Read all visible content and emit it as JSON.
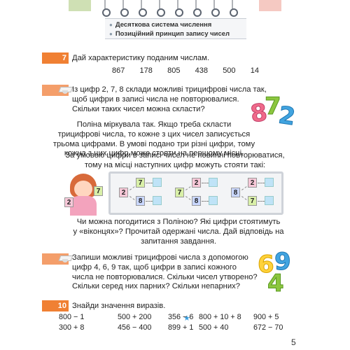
{
  "header": {
    "topics": [
      "Десяткова система числення",
      "Позиційний принцип запису чисел"
    ]
  },
  "task7": {
    "number": "7",
    "text": "Дай характеристику поданим числам.",
    "numbers": [
      "867",
      "178",
      "805",
      "438",
      "500",
      "14"
    ]
  },
  "task8": {
    "number": "8",
    "lines": [
      "Із цифр 2, 7, 8 склади можливі трицифрові числа так,",
      "щоб цифри в записі числа не повторювалися.",
      "Скільки таких чисел можна скласти?"
    ],
    "polina_lines": [
      "Поліна міркувала так. Якщо треба скласти",
      "трицифрові числа, то кожне з цих чисел записується",
      "трьома цифрами. В умові подано три різні цифри, тому",
      "кожна з цих цифр може стояти на першому місці.",
      "За умовою цифри в записі чисел не повинні повторюватися,",
      "тому на місці наступних цифр можуть стояти такі:"
    ],
    "digits_art": [
      "8",
      "7",
      "2"
    ],
    "girl_cards": [
      "2",
      "7"
    ],
    "diagram": [
      {
        "first": "2",
        "second_a": "7",
        "second_b": "8"
      },
      {
        "first": "7",
        "second_a": "2",
        "second_b": "8"
      },
      {
        "first": "8",
        "second_a": "2",
        "second_b": "7"
      }
    ],
    "question_lines": [
      "Чи можна погодитися з Поліною? Які цифри стоятимуть",
      "у «віконцях»? Прочитай одержані числа. Дай відповідь на",
      "запитання завдання."
    ]
  },
  "task9": {
    "number": "9",
    "lines": [
      "Запиши можливі трицифрові числа з допомогою",
      "цифр 4, 6, 9 так, щоб цифри в записі кожного",
      "числа не повторювалися. Скільки чисел утворено?",
      "Скільки серед них парних? Скільки непарних?"
    ],
    "digits_art": [
      "6",
      "9",
      "4"
    ]
  },
  "task10": {
    "number": "10",
    "text": "Знайди значення виразів.",
    "expressions": [
      [
        "800 − 1",
        "500 + 200",
        "356 − 6",
        "800 + 10 + 8",
        "900 + 5"
      ],
      [
        "300 + 8",
        "456 − 400",
        "899 + 1",
        "500 + 40",
        "672 − 70"
      ]
    ]
  },
  "page_number": "5"
}
